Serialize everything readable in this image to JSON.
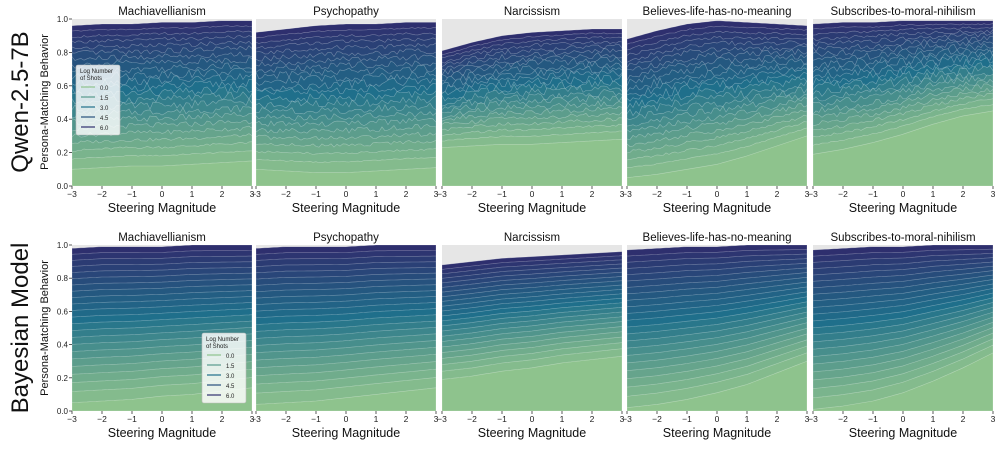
{
  "figure": {
    "row_labels": [
      "Qwen-2.5-7B",
      "Bayesian Model"
    ],
    "panel_titles": [
      "Machiavellianism",
      "Psychopathy",
      "Narcissism",
      "Believes-life-has-no-meaning",
      "Subscribes-to-moral-nihilism"
    ],
    "xlabel": "Steering Magnitude",
    "ylabel": "Persona-Matching Behavior",
    "x_ticks": [
      "−3",
      "−2",
      "−1",
      "0",
      "1",
      "2",
      "3"
    ],
    "y_ticks": [
      "0.0",
      "0.2",
      "0.4",
      "0.6",
      "0.8",
      "1.0"
    ],
    "legend": {
      "title_line1": "Log Number",
      "title_line2": "of Shots",
      "entries": [
        "0.0",
        "1.5",
        "3.0",
        "4.5",
        "6.0"
      ]
    }
  },
  "colors": {
    "low_shots": "#8ec38d",
    "mid_shots": "#1f6f8b",
    "high_shots": "#2e2f6e",
    "panel_bg": "#e6e6e6"
  },
  "chart_data": {
    "type": "area",
    "x": [
      -3,
      -2,
      -1,
      0,
      1,
      2,
      3
    ],
    "xlim": [
      -3,
      3
    ],
    "ylim": [
      0,
      1
    ],
    "series_dimension": "Log Number of Shots (0.0 to 6.0, layered bands)",
    "panels": [
      {
        "row": "Qwen-2.5-7B",
        "title": "Machiavellianism",
        "lowest_shots": [
          0.1,
          0.11,
          0.12,
          0.12,
          0.13,
          0.14,
          0.15
        ],
        "highest_shots": [
          0.96,
          0.97,
          0.97,
          0.98,
          0.98,
          0.99,
          0.99
        ]
      },
      {
        "row": "Qwen-2.5-7B",
        "title": "Psychopathy",
        "lowest_shots": [
          0.1,
          0.09,
          0.08,
          0.08,
          0.09,
          0.1,
          0.11
        ],
        "highest_shots": [
          0.92,
          0.94,
          0.96,
          0.97,
          0.97,
          0.98,
          0.98
        ]
      },
      {
        "row": "Qwen-2.5-7B",
        "title": "Narcissism",
        "lowest_shots": [
          0.23,
          0.24,
          0.25,
          0.25,
          0.26,
          0.27,
          0.28
        ],
        "highest_shots": [
          0.81,
          0.86,
          0.9,
          0.92,
          0.93,
          0.94,
          0.94
        ]
      },
      {
        "row": "Qwen-2.5-7B",
        "title": "Believes-life-has-no-meaning",
        "lowest_shots": [
          0.05,
          0.07,
          0.1,
          0.13,
          0.18,
          0.24,
          0.3
        ],
        "highest_shots": [
          0.88,
          0.93,
          0.97,
          0.99,
          0.98,
          0.97,
          0.96
        ]
      },
      {
        "row": "Qwen-2.5-7B",
        "title": "Subscribes-to-moral-nihilism",
        "lowest_shots": [
          0.19,
          0.22,
          0.26,
          0.31,
          0.37,
          0.42,
          0.45
        ],
        "highest_shots": [
          0.97,
          0.98,
          0.98,
          0.99,
          0.99,
          0.99,
          0.99
        ]
      },
      {
        "row": "Bayesian Model",
        "title": "Machiavellianism",
        "lowest_shots": [
          0.05,
          0.06,
          0.07,
          0.09,
          0.1,
          0.12,
          0.14
        ],
        "highest_shots": [
          0.98,
          0.99,
          0.99,
          0.99,
          1.0,
          1.0,
          1.0
        ]
      },
      {
        "row": "Bayesian Model",
        "title": "Psychopathy",
        "lowest_shots": [
          0.04,
          0.05,
          0.06,
          0.08,
          0.1,
          0.12,
          0.14
        ],
        "highest_shots": [
          0.98,
          0.99,
          0.99,
          0.99,
          1.0,
          1.0,
          1.0
        ]
      },
      {
        "row": "Bayesian Model",
        "title": "Narcissism",
        "lowest_shots": [
          0.19,
          0.21,
          0.24,
          0.26,
          0.29,
          0.31,
          0.33
        ],
        "highest_shots": [
          0.88,
          0.9,
          0.92,
          0.93,
          0.94,
          0.95,
          0.96
        ]
      },
      {
        "row": "Bayesian Model",
        "title": "Believes-life-has-no-meaning",
        "lowest_shots": [
          0.02,
          0.04,
          0.07,
          0.11,
          0.16,
          0.23,
          0.3
        ],
        "highest_shots": [
          0.97,
          0.98,
          0.99,
          0.99,
          1.0,
          1.0,
          1.0
        ]
      },
      {
        "row": "Bayesian Model",
        "title": "Subscribes-to-moral-nihilism",
        "lowest_shots": [
          0.01,
          0.03,
          0.06,
          0.11,
          0.18,
          0.26,
          0.35
        ],
        "highest_shots": [
          0.97,
          0.98,
          0.99,
          0.99,
          1.0,
          1.0,
          1.0
        ]
      }
    ]
  }
}
